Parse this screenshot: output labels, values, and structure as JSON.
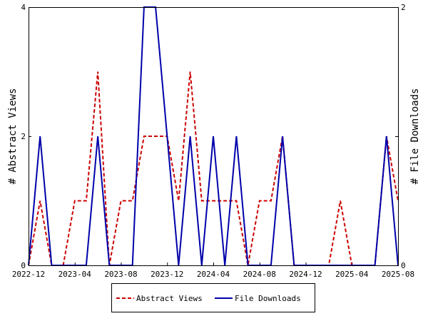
{
  "chart_data": {
    "type": "line",
    "x": [
      "2022-12",
      "2023-01",
      "2023-02",
      "2023-03",
      "2023-04",
      "2023-05",
      "2023-06",
      "2023-07",
      "2023-08",
      "2023-09",
      "2023-10",
      "2023-11",
      "2023-12",
      "2024-01",
      "2024-02",
      "2024-03",
      "2024-04",
      "2024-05",
      "2024-06",
      "2024-07",
      "2024-08",
      "2024-09",
      "2024-10",
      "2024-11",
      "2024-12",
      "2025-01",
      "2025-02",
      "2025-03",
      "2025-04",
      "2025-05",
      "2025-06",
      "2025-07",
      "2025-08"
    ],
    "x_tick_labels": [
      "2022-12",
      "2023-04",
      "2023-08",
      "2023-12",
      "2024-04",
      "2024-08",
      "2024-12",
      "2025-04",
      "2025-08"
    ],
    "series": [
      {
        "name": "Abstract Views",
        "axis": "left",
        "color": "#cc0000",
        "dash": true,
        "values": [
          0,
          1,
          0,
          0,
          1,
          1,
          3,
          0,
          1,
          1,
          2,
          2,
          2,
          1,
          3,
          1,
          1,
          1,
          1,
          0,
          1,
          1,
          2,
          0,
          0,
          0,
          0,
          1,
          0,
          0,
          0,
          2,
          1
        ]
      },
      {
        "name": "File Downloads",
        "axis": "right",
        "color": "#0000aa",
        "dash": false,
        "values": [
          0,
          1,
          0,
          0,
          0,
          0,
          1,
          0,
          0,
          0,
          2,
          2,
          1,
          0,
          1,
          0,
          1,
          0,
          1,
          0,
          0,
          0,
          1,
          0,
          0,
          0,
          0,
          0,
          0,
          0,
          0,
          1,
          0
        ]
      }
    ],
    "ylabel_left": "# Abstract Views",
    "ylabel_right": "# File Downloads",
    "ylim_left": [
      0,
      4
    ],
    "ylim_right": [
      0,
      2
    ],
    "yticks_left": [
      0,
      2,
      4
    ],
    "yticks_right": [
      0,
      1,
      2
    ],
    "ytick_labels_left": [
      "0",
      "2",
      "4"
    ],
    "ytick_labels_right": [
      "0",
      "",
      "2"
    ],
    "grid": false,
    "legend_position": "bottom-center"
  }
}
